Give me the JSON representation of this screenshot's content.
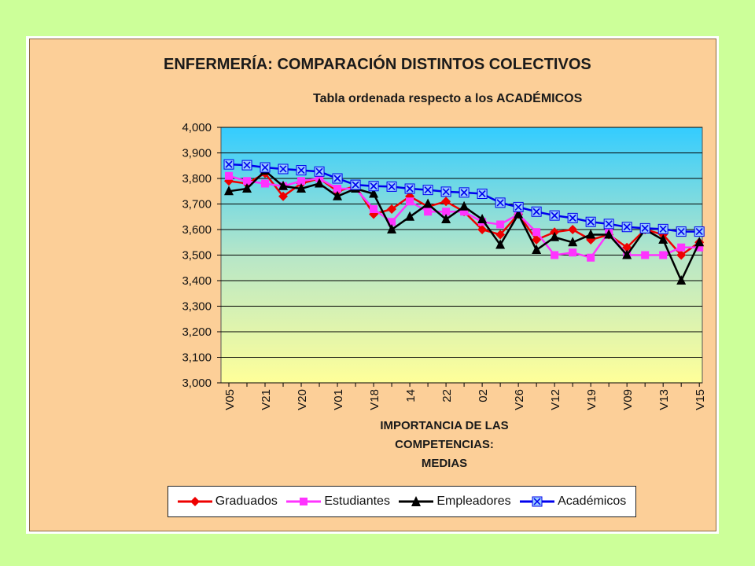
{
  "chart_data": {
    "type": "line",
    "title": "ENFERMERÍA: COMPARACIÓN DISTINTOS COLECTIVOS",
    "subtitle": "Tabla ordenada respecto a los ACADÉMICOS",
    "xlabel_lines": [
      "IMPORTANCIA DE LAS",
      "COMPETENCIAS:",
      "MEDIAS"
    ],
    "ylabel": "",
    "ylim": [
      3.0,
      4.0
    ],
    "yticks": [
      "3,000",
      "3,100",
      "3,200",
      "3,300",
      "3,400",
      "3,500",
      "3,600",
      "3,700",
      "3,800",
      "3,900",
      "4,000"
    ],
    "tick_labels": [
      "V05",
      "V21",
      "V20",
      "V01",
      "V18",
      "14",
      "22",
      "02",
      "V26",
      "V12",
      "V19",
      "V09",
      "V13",
      "V15"
    ],
    "grid": true,
    "legend_position": "bottom",
    "series": [
      {
        "name": "Graduados",
        "color": "#ee0000",
        "marker": "diamond",
        "values": [
          3.79,
          3.78,
          3.82,
          3.73,
          3.78,
          3.8,
          3.75,
          3.77,
          3.66,
          3.68,
          3.73,
          3.69,
          3.71,
          3.67,
          3.6,
          3.58,
          3.66,
          3.56,
          3.59,
          3.6,
          3.56,
          3.58,
          3.53,
          3.6,
          3.58,
          3.5,
          3.55
        ]
      },
      {
        "name": "Estudiantes",
        "color": "#ff33ff",
        "marker": "square",
        "values": [
          3.81,
          3.79,
          3.78,
          3.77,
          3.79,
          3.8,
          3.76,
          3.76,
          3.68,
          3.63,
          3.71,
          3.67,
          3.67,
          3.67,
          3.63,
          3.62,
          3.66,
          3.59,
          3.5,
          3.51,
          3.49,
          3.59,
          3.5,
          3.5,
          3.5,
          3.53,
          3.53
        ]
      },
      {
        "name": "Empleadores",
        "color": "#000000",
        "marker": "triangle",
        "values": [
          3.75,
          3.76,
          3.83,
          3.77,
          3.76,
          3.78,
          3.73,
          3.76,
          3.74,
          3.6,
          3.65,
          3.7,
          3.64,
          3.69,
          3.64,
          3.54,
          3.66,
          3.52,
          3.57,
          3.55,
          3.58,
          3.58,
          3.5,
          3.6,
          3.56,
          3.4,
          3.55
        ]
      },
      {
        "name": "Académicos",
        "color": "#0000ee",
        "marker": "x-square",
        "values": [
          3.855,
          3.852,
          3.843,
          3.837,
          3.832,
          3.827,
          3.8,
          3.775,
          3.77,
          3.768,
          3.76,
          3.755,
          3.748,
          3.745,
          3.74,
          3.705,
          3.688,
          3.67,
          3.655,
          3.645,
          3.63,
          3.622,
          3.61,
          3.605,
          3.602,
          3.592,
          3.592
        ]
      }
    ]
  }
}
